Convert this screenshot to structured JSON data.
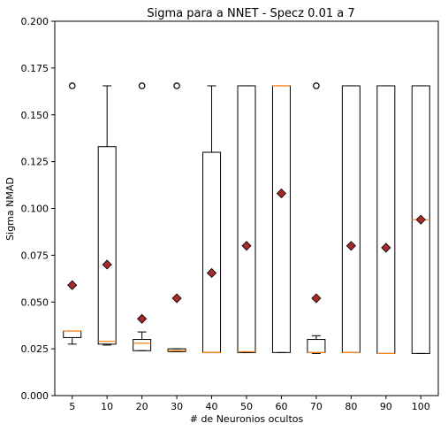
{
  "chart_data": {
    "type": "box",
    "title": "Sigma para a NNET - Specz 0.01 a 7",
    "xlabel": "# de Neuronios ocultos",
    "ylabel": "Sigma NMAD",
    "ylim": [
      0,
      0.2
    ],
    "yticks": [
      0.0,
      0.025,
      0.05,
      0.075,
      0.1,
      0.125,
      0.15,
      0.175,
      0.2
    ],
    "ytick_labels": [
      "0.000",
      "0.025",
      "0.050",
      "0.075",
      "0.100",
      "0.125",
      "0.150",
      "0.175",
      "0.200"
    ],
    "grid": false,
    "colors": {
      "box": "#000000",
      "median": "#ff7f0e",
      "mean_marker": "#a52a2a",
      "flier": "#000000"
    },
    "categories": [
      "5",
      "10",
      "20",
      "30",
      "40",
      "50",
      "60",
      "70",
      "80",
      "90",
      "100"
    ],
    "boxes": [
      {
        "category": "5",
        "whislo": 0.0275,
        "q1": 0.031,
        "median": 0.0345,
        "q3": 0.0345,
        "whishi": 0.0345,
        "mean": 0.059,
        "fliers": [
          0.1655
        ]
      },
      {
        "category": "10",
        "whislo": 0.027,
        "q1": 0.0275,
        "median": 0.029,
        "q3": 0.133,
        "whishi": 0.1655,
        "mean": 0.07,
        "fliers": []
      },
      {
        "category": "20",
        "whislo": 0.024,
        "q1": 0.024,
        "median": 0.028,
        "q3": 0.03,
        "whishi": 0.034,
        "mean": 0.041,
        "fliers": [
          0.1655
        ]
      },
      {
        "category": "30",
        "whislo": 0.0235,
        "q1": 0.0235,
        "median": 0.024,
        "q3": 0.025,
        "whishi": 0.025,
        "mean": 0.052,
        "fliers": [
          0.1655
        ]
      },
      {
        "category": "40",
        "whislo": 0.023,
        "q1": 0.023,
        "median": 0.023,
        "q3": 0.13,
        "whishi": 0.1655,
        "mean": 0.0655,
        "fliers": []
      },
      {
        "category": "50",
        "whislo": 0.023,
        "q1": 0.023,
        "median": 0.0235,
        "q3": 0.1655,
        "whishi": 0.1655,
        "mean": 0.08,
        "fliers": []
      },
      {
        "category": "60",
        "whislo": 0.023,
        "q1": 0.023,
        "median": 0.1655,
        "q3": 0.1655,
        "whishi": 0.1655,
        "mean": 0.108,
        "fliers": []
      },
      {
        "category": "70",
        "whislo": 0.0225,
        "q1": 0.023,
        "median": 0.023,
        "q3": 0.03,
        "whishi": 0.032,
        "mean": 0.052,
        "fliers": [
          0.1655
        ]
      },
      {
        "category": "80",
        "whislo": 0.023,
        "q1": 0.023,
        "median": 0.023,
        "q3": 0.1655,
        "whishi": 0.1655,
        "mean": 0.08,
        "fliers": []
      },
      {
        "category": "90",
        "whislo": 0.0225,
        "q1": 0.0225,
        "median": 0.0225,
        "q3": 0.1655,
        "whishi": 0.1655,
        "mean": 0.079,
        "fliers": []
      },
      {
        "category": "100",
        "whislo": 0.0225,
        "q1": 0.0225,
        "median": 0.094,
        "q3": 0.1655,
        "whishi": 0.1655,
        "mean": 0.094,
        "fliers": []
      }
    ]
  }
}
